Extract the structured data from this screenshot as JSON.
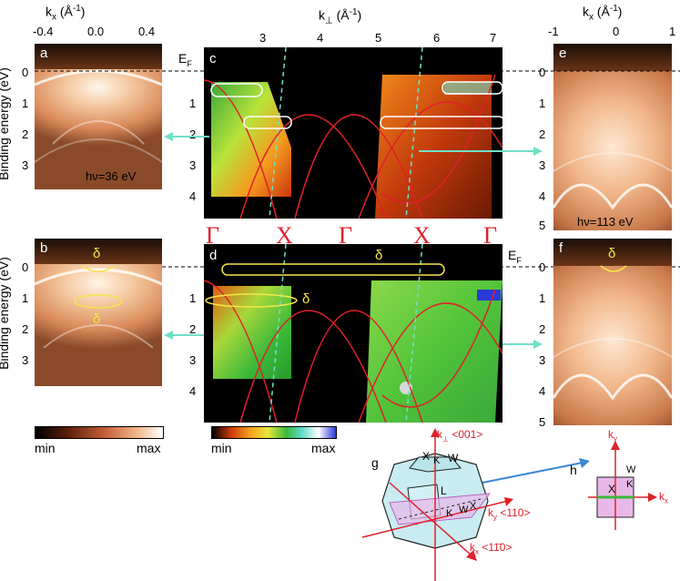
{
  "axes": {
    "kx_label": "k",
    "kx_sub": "x",
    "kx_unit": "(Å",
    "kx_sup": "-1",
    "kx_close": ")",
    "kperp_label": "k",
    "kperp_sub": "⊥",
    "kperp_unit": "(Å",
    "kperp_sup": "-1",
    "kperp_close": ")",
    "binding_energy": "Binding energy (eV)",
    "left_kx_ticks": [
      "-0.4",
      "0.0",
      "0.4"
    ],
    "right_kx_ticks": [
      "-1",
      "0",
      "1"
    ],
    "kperp_ticks": [
      "3",
      "4",
      "5",
      "6",
      "7"
    ],
    "energy_ticks_a": [
      "0",
      "1",
      "2",
      "3"
    ],
    "energy_ticks_c": [
      "1",
      "2",
      "3",
      "4"
    ],
    "energy_ticks_e": [
      "0",
      "1",
      "2",
      "3",
      "4",
      "5"
    ],
    "energy_ticks_b": [
      "0",
      "1",
      "2",
      "3"
    ],
    "energy_ticks_d": [
      "1",
      "2",
      "3",
      "4"
    ],
    "energy_ticks_f": [
      "0",
      "1",
      "2",
      "3",
      "4",
      "5"
    ]
  },
  "panels": {
    "a": "a",
    "b": "b",
    "c": "c",
    "d": "d",
    "e": "e",
    "f": "f",
    "g": "g",
    "h": "h"
  },
  "annotations": {
    "ef": "E",
    "ef_sub": "F",
    "hv_a": "hν=36 eV",
    "hv_e": "hν=113 eV",
    "delta": "δ"
  },
  "symmetry_points": [
    "Γ",
    "X",
    "Γ",
    "X",
    "Γ"
  ],
  "colorbars": {
    "left_min": "min",
    "left_max": "max",
    "mid_min": "min",
    "mid_max": "max"
  },
  "bz": {
    "kperp": "k",
    "kperp_sub": "⊥",
    "kperp_dir": "<001>",
    "ky": "k",
    "ky_sub": "y",
    "ky_dir": "<110>",
    "kx": "k",
    "kx_sub": "x",
    "kx_dir": "<11̄0>",
    "points": [
      "X",
      "K",
      "W",
      "L",
      "K",
      "W",
      "X"
    ]
  },
  "bz2d": {
    "ky": "k",
    "ky_sub": "y",
    "kx": "k",
    "kx_sub": "x",
    "points": [
      "W",
      "X",
      "K"
    ]
  },
  "colors": {
    "red": "#e0202a",
    "yellow": "#f5e64a",
    "cyan": "#6fe0c8",
    "blue_arrow": "#3d86d8"
  }
}
